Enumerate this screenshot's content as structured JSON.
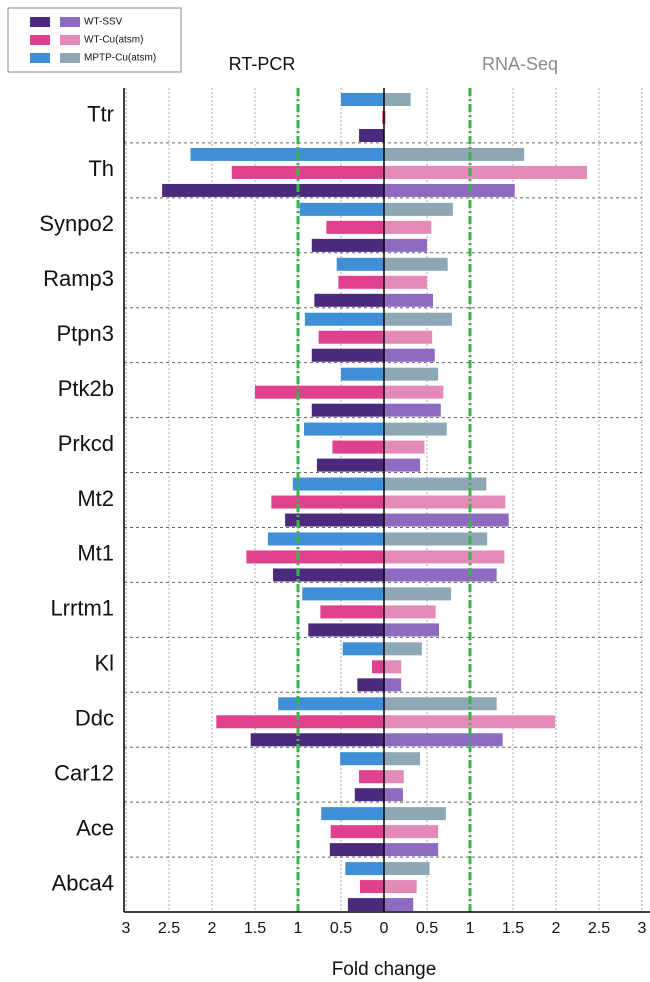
{
  "chart_data": {
    "type": "butterfly-bar",
    "xlabel": "Fold change",
    "categories": [
      "Ttr",
      "Th",
      "Synpo2",
      "Ramp3",
      "Ptpn3",
      "Ptk2b",
      "Prkcd",
      "Mt2",
      "Mt1",
      "Lrrtm1",
      "Kl",
      "Ddc",
      "Car12",
      "Ace",
      "Abca4"
    ],
    "legend": [
      "WT-SSV",
      "WT-Cu(atsm)",
      "MPTP-Cu(atsm)"
    ],
    "grid": true,
    "panels": [
      {
        "title": "RT-PCR",
        "title_color": "#111111",
        "side": "left",
        "xlim": [
          0,
          3
        ],
        "xticks": [
          0,
          0.5,
          1,
          1.5,
          2,
          2.5,
          3
        ],
        "reference_line": 1,
        "reference_color": "#3cb44b",
        "series": [
          {
            "color": "#4b2a7b",
            "values": [
              0.29,
              2.58,
              0.84,
              0.81,
              0.84,
              0.84,
              0.78,
              1.15,
              1.29,
              0.88,
              0.31,
              1.55,
              0.34,
              0.63,
              0.42
            ]
          },
          {
            "color": "#e0418f",
            "values": [
              0.02,
              1.77,
              0.67,
              0.53,
              0.76,
              1.5,
              0.6,
              1.31,
              1.6,
              0.74,
              0.14,
              1.95,
              0.29,
              0.62,
              0.28
            ]
          },
          {
            "color": "#3f8fd6",
            "values": [
              0.5,
              2.25,
              0.98,
              0.55,
              0.92,
              0.5,
              0.93,
              1.06,
              1.35,
              0.95,
              0.48,
              1.23,
              0.51,
              0.73,
              0.45
            ]
          }
        ]
      },
      {
        "title": "RNA-Seq",
        "title_color": "#8a8a8a",
        "side": "right",
        "xlim": [
          0,
          3
        ],
        "xticks": [
          0.5,
          1,
          1.5,
          2,
          2.5,
          3
        ],
        "reference_line": 1,
        "reference_color": "#3cb44b",
        "series": [
          {
            "color": "#8e6bc0",
            "values": [
              0,
              1.52,
              0.5,
              0.57,
              0.59,
              0.66,
              0.42,
              1.45,
              1.31,
              0.64,
              0.2,
              1.38,
              0.22,
              0.63,
              0.34
            ]
          },
          {
            "color": "#e38ab8",
            "values": [
              0.02,
              2.36,
              0.55,
              0.5,
              0.56,
              0.69,
              0.47,
              1.41,
              1.4,
              0.6,
              0.2,
              1.99,
              0.23,
              0.63,
              0.38
            ]
          },
          {
            "color": "#8ea7b5",
            "values": [
              0.31,
              1.63,
              0.8,
              0.74,
              0.79,
              0.63,
              0.73,
              1.19,
              1.2,
              0.78,
              0.44,
              1.31,
              0.42,
              0.72,
              0.53
            ]
          }
        ]
      }
    ]
  }
}
